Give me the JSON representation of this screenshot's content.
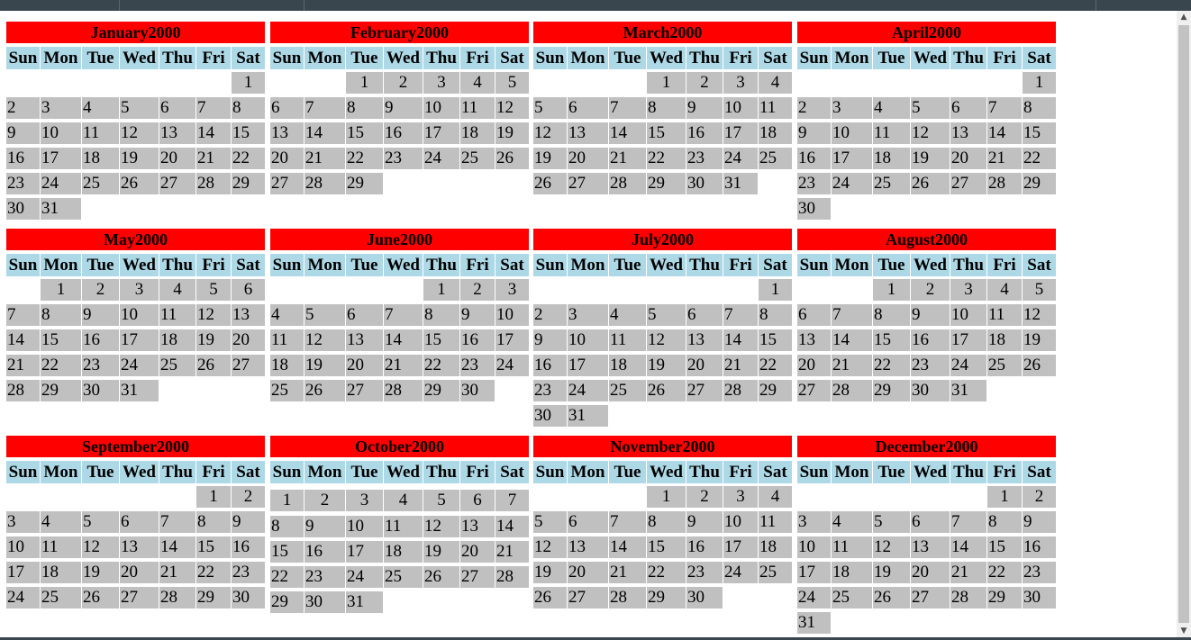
{
  "year": "2000",
  "weekdays": [
    "Sun",
    "Mon",
    "Tue",
    "Wed",
    "Thu",
    "Fri",
    "Sat"
  ],
  "months": [
    {
      "name": "January",
      "start": 6,
      "days": 31
    },
    {
      "name": "February",
      "start": 2,
      "days": 29
    },
    {
      "name": "March",
      "start": 3,
      "days": 31
    },
    {
      "name": "April",
      "start": 6,
      "days": 30
    },
    {
      "name": "May",
      "start": 1,
      "days": 31
    },
    {
      "name": "June",
      "start": 4,
      "days": 30
    },
    {
      "name": "July",
      "start": 6,
      "days": 31
    },
    {
      "name": "August",
      "start": 2,
      "days": 31
    },
    {
      "name": "September",
      "start": 5,
      "days": 30
    },
    {
      "name": "October",
      "start": 0,
      "days": 31
    },
    {
      "name": "November",
      "start": 3,
      "days": 30
    },
    {
      "name": "December",
      "start": 5,
      "days": 31
    }
  ],
  "colors": {
    "title_bg": "#ff0000",
    "weekday_bg": "#add8e6",
    "day_bg": "#c0c0c0",
    "chrome": "#3a464e"
  }
}
